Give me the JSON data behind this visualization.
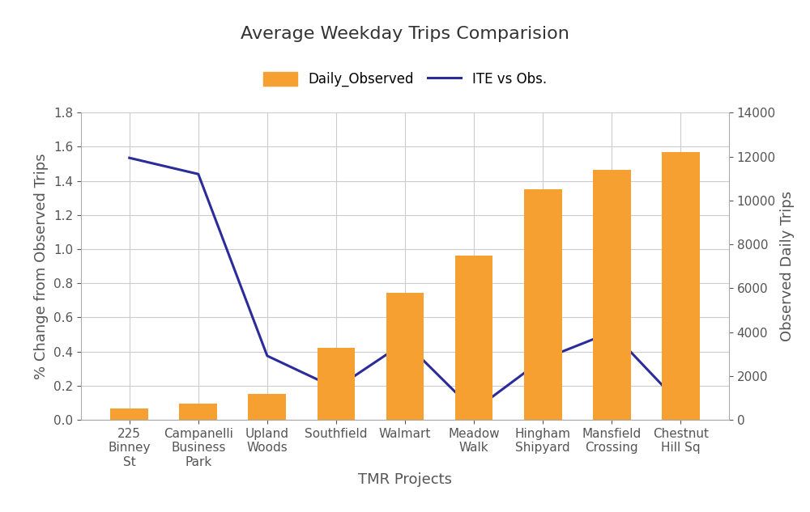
{
  "categories": [
    "225\nBinney\nSt",
    "Campanelli\nBusiness\nPark",
    "Upland\nWoods",
    "Southfield",
    "Walmart",
    "Meadow\nWalk",
    "Hingham\nShipyard",
    "Mansfield\nCrossing",
    "Chestnut\nHill Sq"
  ],
  "bar_values": [
    500,
    750,
    1200,
    3300,
    5800,
    7500,
    10500,
    11400,
    12200
  ],
  "line_values": [
    1.535,
    1.44,
    0.375,
    0.185,
    0.455,
    0.055,
    0.355,
    0.515,
    0.09
  ],
  "bar_color": "#F5A030",
  "line_color": "#2B2B9B",
  "title": "Average Weekday Trips Comparision",
  "xlabel": "TMR Projects",
  "ylabel_left": "% Change from Observed Trips",
  "ylabel_right": "Observed Daily Trips",
  "ylim_left": [
    0,
    1.8
  ],
  "ylim_right": [
    0,
    14000
  ],
  "yticks_left": [
    0,
    0.2,
    0.4,
    0.6,
    0.8,
    1.0,
    1.2,
    1.4,
    1.6,
    1.8
  ],
  "yticks_right": [
    0,
    2000,
    4000,
    6000,
    8000,
    10000,
    12000,
    14000
  ],
  "legend_bar_label": "Daily_Observed",
  "legend_line_label": "ITE vs Obs.",
  "background_color": "#FFFFFF",
  "grid_color": "#CCCCCC",
  "title_fontsize": 16,
  "label_fontsize": 13,
  "tick_fontsize": 11,
  "legend_fontsize": 12,
  "bar_width": 0.55,
  "line_width": 2.2
}
